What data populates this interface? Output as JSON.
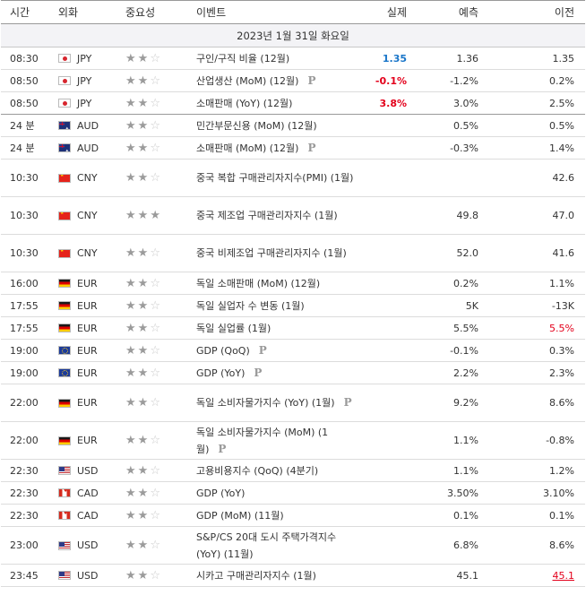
{
  "headers": {
    "time": "시간",
    "currency": "외화",
    "importance": "중요성",
    "event": "이벤트",
    "actual": "실제",
    "forecast": "예측",
    "previous": "이전"
  },
  "date_label": "2023년 1월 31일 화요일",
  "colors": {
    "positive": "#1a76c9",
    "negative": "#e3001b",
    "star_on": "#9b9b9b",
    "star_off": "#c9c9c9"
  },
  "events": [
    {
      "time": "08:30",
      "flag": "jp",
      "currency": "JPY",
      "stars": 2,
      "event": "구인/구직 비율 (12월)",
      "preliminary": false,
      "actual": "1.35",
      "actual_tone": "pos",
      "forecast": "1.36",
      "previous": "1.35",
      "previous_tone": "",
      "lines": 1
    },
    {
      "time": "08:50",
      "flag": "jp",
      "currency": "JPY",
      "stars": 2,
      "event": "산업생산 (MoM) (12월)",
      "preliminary": true,
      "actual": "-0.1%",
      "actual_tone": "neg",
      "forecast": "-1.2%",
      "previous": "0.2%",
      "previous_tone": "",
      "lines": 1
    },
    {
      "time": "08:50",
      "flag": "jp",
      "currency": "JPY",
      "stars": 2,
      "event": "소매판매 (YoY) (12월)",
      "preliminary": false,
      "actual": "3.8%",
      "actual_tone": "neg",
      "forecast": "3.0%",
      "previous": "2.5%",
      "previous_tone": "",
      "lines": 1,
      "group_end": true
    },
    {
      "time": "24 분",
      "flag": "au",
      "currency": "AUD",
      "stars": 2,
      "event": "민간부문신용 (MoM) (12월)",
      "preliminary": false,
      "actual": "",
      "actual_tone": "",
      "forecast": "0.5%",
      "previous": "0.5%",
      "previous_tone": "",
      "lines": 1
    },
    {
      "time": "24 분",
      "flag": "au",
      "currency": "AUD",
      "stars": 2,
      "event": "소매판매 (MoM) (12월)",
      "preliminary": true,
      "actual": "",
      "actual_tone": "",
      "forecast": "-0.3%",
      "previous": "1.4%",
      "previous_tone": "",
      "lines": 1
    },
    {
      "time": "10:30",
      "flag": "cn",
      "currency": "CNY",
      "stars": 2,
      "event": "중국 복합 구매관리자지수(PMI) (1월)",
      "preliminary": false,
      "actual": "",
      "actual_tone": "",
      "forecast": "",
      "previous": "42.6",
      "previous_tone": "",
      "lines": 2
    },
    {
      "time": "10:30",
      "flag": "cn",
      "currency": "CNY",
      "stars": 3,
      "event": "중국 제조업 구매관리자지수 (1월)",
      "preliminary": false,
      "actual": "",
      "actual_tone": "",
      "forecast": "49.8",
      "previous": "47.0",
      "previous_tone": "",
      "lines": 2
    },
    {
      "time": "10:30",
      "flag": "cn",
      "currency": "CNY",
      "stars": 2,
      "event": "중국 비제조업 구매관리자지수 (1월)",
      "preliminary": false,
      "actual": "",
      "actual_tone": "",
      "forecast": "52.0",
      "previous": "41.6",
      "previous_tone": "",
      "lines": 2
    },
    {
      "time": "16:00",
      "flag": "de",
      "currency": "EUR",
      "stars": 2,
      "event": "독일 소매판매 (MoM) (12월)",
      "preliminary": false,
      "actual": "",
      "actual_tone": "",
      "forecast": "0.2%",
      "previous": "1.1%",
      "previous_tone": "",
      "lines": 1
    },
    {
      "time": "17:55",
      "flag": "de",
      "currency": "EUR",
      "stars": 2,
      "event": "독일 실업자 수 변동 (1월)",
      "preliminary": false,
      "actual": "",
      "actual_tone": "",
      "forecast": "5K",
      "previous": "-13K",
      "previous_tone": "",
      "lines": 1
    },
    {
      "time": "17:55",
      "flag": "de",
      "currency": "EUR",
      "stars": 2,
      "event": "독일 실업률 (1월)",
      "preliminary": false,
      "actual": "",
      "actual_tone": "",
      "forecast": "5.5%",
      "previous": "5.5%",
      "previous_tone": "neg",
      "lines": 1
    },
    {
      "time": "19:00",
      "flag": "eu",
      "currency": "EUR",
      "stars": 2,
      "event": "GDP (QoQ)",
      "preliminary": true,
      "actual": "",
      "actual_tone": "",
      "forecast": "-0.1%",
      "previous": "0.3%",
      "previous_tone": "",
      "lines": 1
    },
    {
      "time": "19:00",
      "flag": "eu",
      "currency": "EUR",
      "stars": 2,
      "event": "GDP (YoY)",
      "preliminary": true,
      "actual": "",
      "actual_tone": "",
      "forecast": "2.2%",
      "previous": "2.3%",
      "previous_tone": "",
      "lines": 1
    },
    {
      "time": "22:00",
      "flag": "de",
      "currency": "EUR",
      "stars": 2,
      "event": "독일 소비자물가지수 (YoY) (1월)",
      "preliminary": true,
      "actual": "",
      "actual_tone": "",
      "forecast": "9.2%",
      "previous": "8.6%",
      "previous_tone": "",
      "lines": 2
    },
    {
      "time": "22:00",
      "flag": "de",
      "currency": "EUR",
      "stars": 2,
      "event": "독일 소비자물가지수 (MoM) (1월)",
      "preliminary": true,
      "actual": "",
      "actual_tone": "",
      "forecast": "1.1%",
      "previous": "-0.8%",
      "previous_tone": "",
      "lines": 2
    },
    {
      "time": "22:30",
      "flag": "us",
      "currency": "USD",
      "stars": 2,
      "event": "고용비용지수 (QoQ) (4분기)",
      "preliminary": false,
      "actual": "",
      "actual_tone": "",
      "forecast": "1.1%",
      "previous": "1.2%",
      "previous_tone": "",
      "lines": 1
    },
    {
      "time": "22:30",
      "flag": "ca",
      "currency": "CAD",
      "stars": 2,
      "event": "GDP (YoY)",
      "preliminary": false,
      "actual": "",
      "actual_tone": "",
      "forecast": "3.50%",
      "previous": "3.10%",
      "previous_tone": "",
      "lines": 1
    },
    {
      "time": "22:30",
      "flag": "ca",
      "currency": "CAD",
      "stars": 2,
      "event": "GDP (MoM) (11월)",
      "preliminary": false,
      "actual": "",
      "actual_tone": "",
      "forecast": "0.1%",
      "previous": "0.1%",
      "previous_tone": "",
      "lines": 1
    },
    {
      "time": "23:00",
      "flag": "us",
      "currency": "USD",
      "stars": 2,
      "event": "S&P/CS 20대 도시 주택가격지수 (YoY) (11월)",
      "preliminary": false,
      "actual": "",
      "actual_tone": "",
      "forecast": "6.8%",
      "previous": "8.6%",
      "previous_tone": "",
      "lines": 2
    },
    {
      "time": "23:45",
      "flag": "us",
      "currency": "USD",
      "stars": 2,
      "event": "시카고 구매관리자지수 (1월)",
      "preliminary": false,
      "actual": "",
      "actual_tone": "",
      "forecast": "45.1",
      "previous": "45.1",
      "previous_tone": "neg-underline",
      "lines": 1
    }
  ]
}
